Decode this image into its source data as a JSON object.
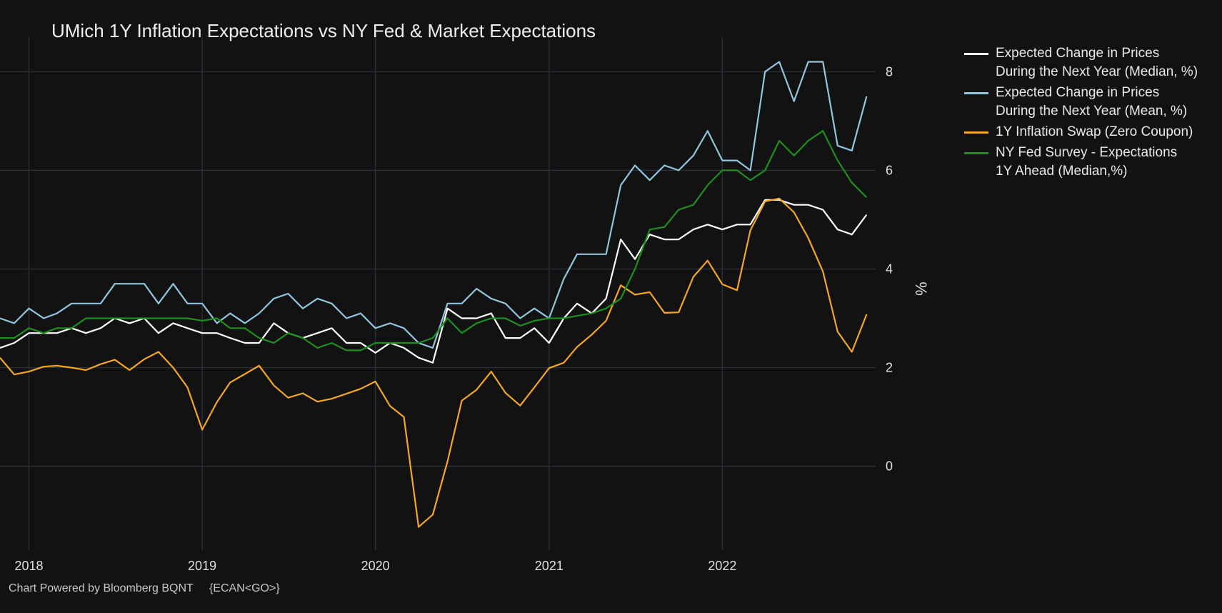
{
  "footer": {
    "credit": "Chart Powered by Bloomberg BQNT",
    "code": "{ECAN<GO>}"
  },
  "chart_data": {
    "type": "line",
    "title": "UMich 1Y Inflation Expectations vs NY Fed & Market Expectations",
    "ylabel": "%",
    "xlabel": "",
    "ylim": [
      -1.7,
      8.7
    ],
    "xlim": [
      "2017-11-01",
      "2022-11-20"
    ],
    "yticks": [
      0,
      2,
      4,
      6,
      8
    ],
    "xticks": [
      "2018",
      "2019",
      "2020",
      "2021",
      "2022"
    ],
    "grid": true,
    "y_axis_side": "right",
    "legend_position": "top-right",
    "background": "#121212",
    "gridline_color": "#2b333d",
    "series": [
      {
        "name": "Expected Change in Prices During the Next Year (Median, %)",
        "legend_lines": [
          "Expected Change in Prices",
          "During the Next Year (Median, %)"
        ],
        "color": "#ffffff",
        "x_start": "2017-11",
        "values": [
          2.4,
          2.5,
          2.7,
          2.7,
          2.7,
          2.8,
          2.7,
          2.8,
          3.0,
          2.9,
          3.0,
          2.7,
          2.9,
          2.8,
          2.7,
          2.7,
          2.6,
          2.5,
          2.5,
          2.9,
          2.7,
          2.6,
          2.7,
          2.8,
          2.5,
          2.5,
          2.3,
          2.5,
          2.4,
          2.2,
          2.1,
          3.2,
          3.0,
          3.0,
          3.1,
          2.6,
          2.6,
          2.8,
          2.5,
          3.0,
          3.3,
          3.1,
          3.4,
          4.6,
          4.2,
          4.7,
          4.6,
          4.6,
          4.8,
          4.9,
          4.8,
          4.9,
          4.9,
          5.4,
          5.4,
          5.3,
          5.3,
          5.2,
          4.8,
          4.7,
          5.1
        ]
      },
      {
        "name": "Expected Change in Prices During the Next Year (Mean, %)",
        "legend_lines": [
          "Expected Change in Prices",
          "During the Next Year (Mean, %)"
        ],
        "color": "#92c5de",
        "x_start": "2017-11",
        "values": [
          3.0,
          2.9,
          3.2,
          3.0,
          3.1,
          3.3,
          3.3,
          3.3,
          3.7,
          3.7,
          3.7,
          3.3,
          3.7,
          3.3,
          3.3,
          2.9,
          3.1,
          2.9,
          3.1,
          3.4,
          3.5,
          3.2,
          3.4,
          3.3,
          3.0,
          3.1,
          2.8,
          2.9,
          2.8,
          2.5,
          2.4,
          3.3,
          3.3,
          3.6,
          3.4,
          3.3,
          3.0,
          3.2,
          3.0,
          3.8,
          4.3,
          4.3,
          4.3,
          5.7,
          6.1,
          5.8,
          6.1,
          6.0,
          6.3,
          6.8,
          6.2,
          6.2,
          6.0,
          8.0,
          8.2,
          7.4,
          8.2,
          8.2,
          6.5,
          6.4,
          7.5
        ]
      },
      {
        "name": "1Y Inflation Swap (Zero Coupon)",
        "legend_lines": [
          "1Y Inflation Swap (Zero Coupon)"
        ],
        "color": "#f5a623",
        "x_start": "2017-11",
        "values": [
          2.2,
          1.86,
          1.92,
          2.02,
          2.04,
          2.0,
          1.95,
          2.07,
          2.16,
          1.95,
          2.17,
          2.32,
          2.0,
          1.6,
          0.74,
          1.3,
          1.7,
          1.87,
          2.04,
          1.64,
          1.39,
          1.48,
          1.31,
          1.37,
          1.47,
          1.57,
          1.72,
          1.22,
          1.0,
          -1.23,
          -0.98,
          0.1,
          1.33,
          1.55,
          1.92,
          1.49,
          1.23,
          1.6,
          1.99,
          2.1,
          2.42,
          2.67,
          2.95,
          3.67,
          3.48,
          3.53,
          3.11,
          3.12,
          3.84,
          4.17,
          3.69,
          3.57,
          4.78,
          5.37,
          5.43,
          5.15,
          4.63,
          3.95,
          2.73,
          2.32,
          3.08
        ]
      },
      {
        "name": "NY Fed Survey - Expectations 1Y Ahead (Median,%)",
        "legend_lines": [
          "NY Fed Survey - Expectations",
          "1Y Ahead (Median,%)"
        ],
        "color": "#1e8f1e",
        "x_start": "2017-11",
        "values": [
          2.6,
          2.6,
          2.8,
          2.7,
          2.8,
          2.8,
          3.0,
          3.0,
          3.0,
          3.0,
          3.0,
          3.0,
          3.0,
          3.0,
          2.95,
          3.0,
          2.8,
          2.8,
          2.6,
          2.5,
          2.7,
          2.6,
          2.4,
          2.5,
          2.35,
          2.35,
          2.5,
          2.5,
          2.5,
          2.5,
          2.6,
          3.0,
          2.7,
          2.9,
          3.0,
          3.0,
          2.85,
          2.95,
          3.0,
          3.0,
          3.05,
          3.1,
          3.2,
          3.4,
          4.0,
          4.8,
          4.85,
          5.2,
          5.3,
          5.7,
          6.0,
          6.0,
          5.8,
          6.0,
          6.6,
          6.3,
          6.6,
          6.8,
          6.2,
          5.75,
          5.45
        ]
      }
    ]
  }
}
